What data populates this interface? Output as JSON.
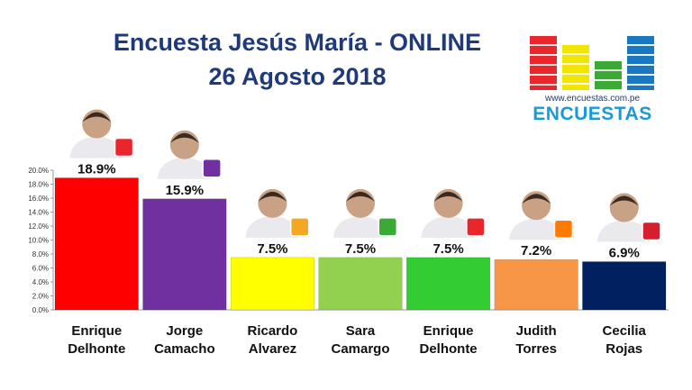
{
  "title_line1": "Encuesta Jesús María - ONLINE",
  "title_line2": "26 Agosto 2018",
  "logo": {
    "url_text": "www.encuestas.com.pe",
    "wordmark": "ENCUESTAS",
    "colors": [
      "#e8262b",
      "#f2e600",
      "#3aa935",
      "#1a78c2"
    ]
  },
  "chart_data": {
    "type": "bar",
    "categories": [
      "Enrique Delhonte",
      "Jorge Camacho",
      "Ricardo Alvarez",
      "Sara Camargo",
      "Enrique Delhonte",
      "Judith Torres",
      "Cecilia Rojas"
    ],
    "category_lines": [
      [
        "Enrique",
        "Delhonte"
      ],
      [
        "Jorge",
        "Camacho"
      ],
      [
        "Ricardo",
        "Alvarez"
      ],
      [
        "Sara",
        "Camargo"
      ],
      [
        "Enrique",
        "Delhonte"
      ],
      [
        "Judith",
        "Torres"
      ],
      [
        "Cecilia",
        "Rojas"
      ]
    ],
    "values": [
      18.9,
      15.9,
      7.5,
      7.5,
      7.5,
      7.2,
      6.9
    ],
    "value_labels": [
      "18.9%",
      "15.9%",
      "7.5%",
      "7.5%",
      "7.5%",
      "7.2%",
      "6.9%"
    ],
    "colors": [
      "#ff0000",
      "#7030a0",
      "#ffff00",
      "#92d050",
      "#33cc33",
      "#f79646",
      "#002060"
    ],
    "ylim": [
      0,
      20
    ],
    "yticks": [
      "0.0%",
      "2.0%",
      "4.0%",
      "6.0%",
      "8.0%",
      "10.0%",
      "12.0%",
      "14.0%",
      "16.0%",
      "18.0%",
      "20.0%"
    ],
    "grid": false,
    "party_icon_colors": [
      "#e8262b",
      "#7030a0",
      "#f5a623",
      "#3aa935",
      "#e8262b",
      "#ff7a00",
      "#d61f2c"
    ]
  }
}
